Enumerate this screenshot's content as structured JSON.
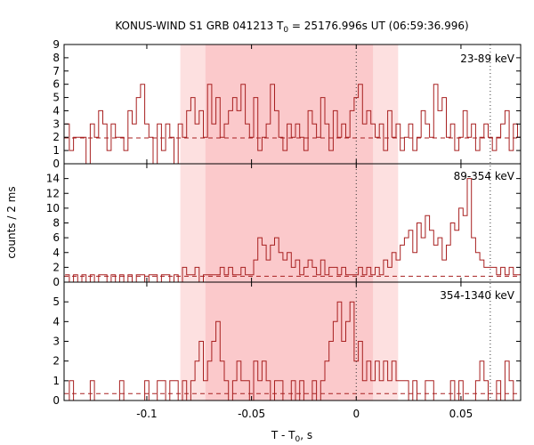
{
  "chart_data": {
    "type": "histogram",
    "title_main": "KONUS-WIND S1 GRB 041213 T",
    "title_sub": "0",
    "title_rest": " = 25176.996s UT (06:59:36.996)",
    "xlabel_main": "T - T",
    "xlabel_sub": "0",
    "xlabel_rest": ", s",
    "ylabel": "counts / 2 ms",
    "bin_width": 0.002,
    "xlim": [
      -0.1395,
      0.0785
    ],
    "x_ticks": [
      -0.1,
      -0.05,
      0,
      0.05
    ],
    "x_tick_labels": [
      "-0.1",
      "-0.05",
      "0",
      "0.05"
    ],
    "shading": {
      "outer": [
        -0.084,
        0.02
      ],
      "inner": [
        -0.072,
        0.008
      ],
      "outer_color": "#fde0e0",
      "inner_color": "#fbc9cb"
    },
    "dotted_lines": [
      0.0,
      0.064
    ],
    "line_color": "#a82020",
    "panels": [
      {
        "label": "23-89 keV",
        "ylim": [
          0,
          9
        ],
        "yticks": [
          0,
          1,
          2,
          3,
          4,
          5,
          6,
          7,
          8,
          9
        ],
        "background": 1.95,
        "x_start": -0.139,
        "counts": [
          3,
          1,
          2,
          2,
          2,
          0,
          3,
          2,
          4,
          3,
          1,
          3,
          2,
          2,
          1,
          4,
          3,
          5,
          6,
          3,
          2,
          0,
          3,
          1,
          3,
          2,
          0,
          3,
          2,
          4,
          5,
          3,
          4,
          2,
          6,
          3,
          5,
          2,
          3,
          4,
          5,
          4,
          6,
          3,
          2,
          5,
          1,
          2,
          3,
          6,
          4,
          2,
          1,
          3,
          2,
          3,
          2,
          1,
          4,
          3,
          2,
          5,
          3,
          1,
          4,
          2,
          3,
          2,
          4,
          5,
          6,
          3,
          4,
          3,
          2,
          3,
          1,
          4,
          2,
          3,
          1,
          2,
          3,
          1,
          2,
          4,
          3,
          2,
          6,
          4,
          5,
          2,
          3,
          1,
          2,
          4,
          2,
          3,
          1,
          2,
          3,
          2,
          1,
          2,
          3,
          4,
          1,
          3,
          2,
          4
        ]
      },
      {
        "label": "89-354 keV",
        "ylim": [
          0,
          16
        ],
        "yticks": [
          0,
          2,
          4,
          6,
          8,
          10,
          12,
          14
        ],
        "background": 0.8,
        "x_start": -0.139,
        "counts": [
          1,
          0,
          1,
          0,
          1,
          0,
          1,
          0,
          1,
          1,
          0,
          1,
          0,
          1,
          0,
          1,
          0,
          1,
          1,
          0,
          1,
          1,
          0,
          1,
          1,
          0,
          1,
          0,
          2,
          1,
          1,
          2,
          0,
          1,
          1,
          1,
          1,
          2,
          1,
          2,
          1,
          1,
          2,
          1,
          1,
          3,
          6,
          5,
          3,
          5,
          6,
          4,
          3,
          4,
          2,
          3,
          1,
          2,
          3,
          2,
          1,
          3,
          1,
          2,
          2,
          1,
          2,
          1,
          1,
          1,
          2,
          1,
          2,
          1,
          2,
          1,
          3,
          2,
          4,
          3,
          5,
          6,
          7,
          4,
          8,
          6,
          9,
          7,
          5,
          6,
          3,
          5,
          8,
          7,
          10,
          9,
          14,
          6,
          4,
          3,
          2,
          2,
          2,
          1,
          2,
          1,
          2,
          1,
          1,
          1
        ]
      },
      {
        "label": "354-1340 keV",
        "ylim": [
          0,
          6
        ],
        "yticks": [
          0,
          1,
          2,
          3,
          4,
          5
        ],
        "background": 0.35,
        "x_start": -0.139,
        "counts": [
          0,
          1,
          0,
          0,
          0,
          0,
          1,
          0,
          0,
          0,
          0,
          0,
          0,
          1,
          0,
          0,
          0,
          0,
          0,
          1,
          0,
          0,
          1,
          1,
          0,
          1,
          1,
          0,
          1,
          0,
          1,
          2,
          3,
          1,
          2,
          3,
          4,
          2,
          1,
          0,
          1,
          2,
          1,
          1,
          0,
          2,
          1,
          2,
          1,
          0,
          1,
          1,
          0,
          0,
          1,
          0,
          1,
          0,
          0,
          1,
          0,
          1,
          2,
          3,
          4,
          5,
          3,
          4,
          5,
          2,
          3,
          1,
          2,
          1,
          2,
          1,
          2,
          1,
          2,
          1,
          1,
          1,
          0,
          1,
          0,
          0,
          1,
          1,
          0,
          0,
          0,
          0,
          1,
          0,
          1,
          0,
          0,
          0,
          1,
          2,
          1,
          0,
          0,
          1,
          0,
          2,
          1,
          0,
          0,
          1
        ]
      }
    ]
  }
}
